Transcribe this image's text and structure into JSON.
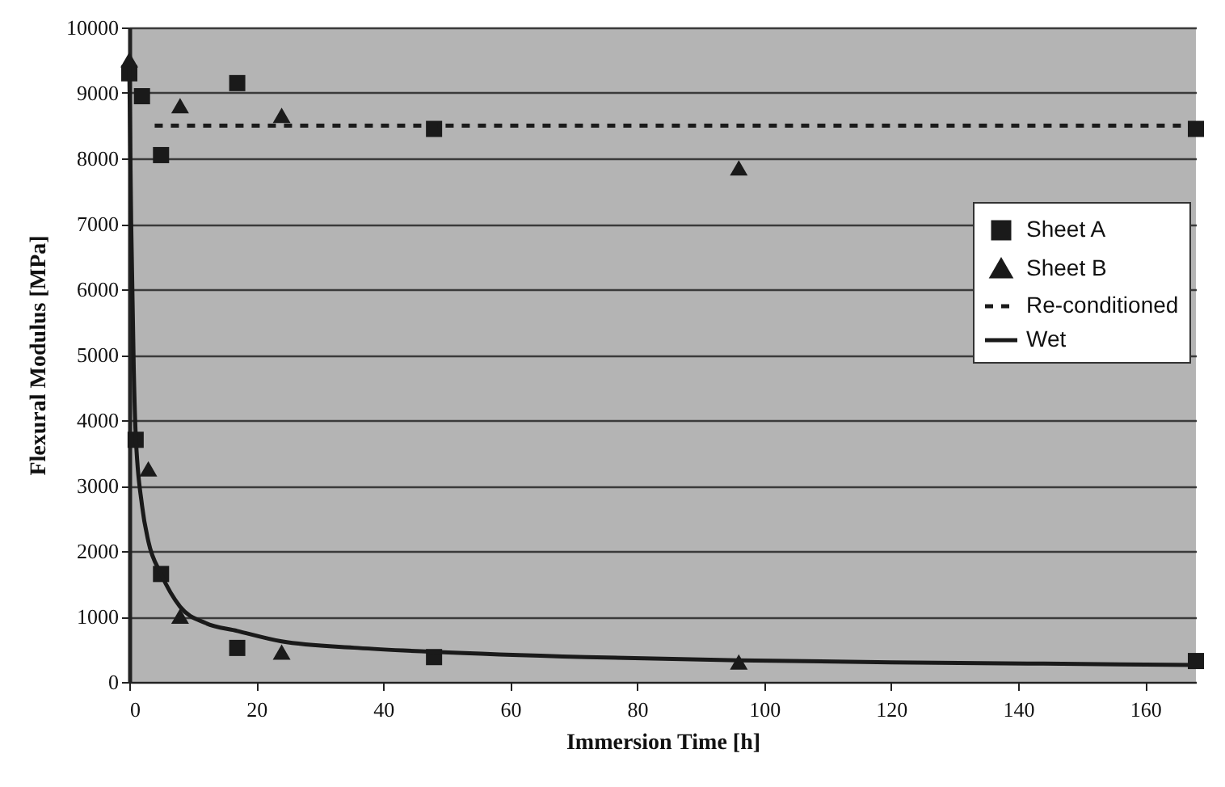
{
  "chart_data": {
    "type": "scatter",
    "xlabel": "Immersion Time [h]",
    "ylabel": "Flexural Modulus [MPa]",
    "xlim": [
      0,
      168
    ],
    "xticks": [
      0,
      20,
      40,
      60,
      80,
      100,
      120,
      140,
      160
    ],
    "ylim": [
      0,
      10000
    ],
    "yticks": [
      0,
      1000,
      2000,
      3000,
      4000,
      5000,
      6000,
      7000,
      8000,
      9000,
      10000
    ],
    "grid": "y",
    "legend": "right",
    "series": [
      {
        "name": "Sheet A",
        "marker": "square",
        "color": "#1a1a1a",
        "x": [
          0,
          2,
          5,
          17,
          48,
          168,
          1,
          5,
          17,
          48,
          168
        ],
        "values": [
          9300,
          8950,
          8050,
          9150,
          8450,
          8450,
          3700,
          1650,
          520,
          380,
          320
        ]
      },
      {
        "name": "Sheet B",
        "marker": "triangle",
        "color": "#1a1a1a",
        "x": [
          0,
          8,
          24,
          96,
          3,
          8,
          24,
          96
        ],
        "values": [
          9500,
          8800,
          8650,
          7850,
          3250,
          1000,
          450,
          300
        ]
      },
      {
        "name": "Re-conditioned",
        "type": "line",
        "line_style": "dashed",
        "color": "#1a1a1a",
        "x": [
          4,
          168
        ],
        "values": [
          8500,
          8500
        ]
      },
      {
        "name": "Wet",
        "type": "line",
        "line_style": "solid",
        "color": "#1a1a1a",
        "x": [
          0,
          0.3,
          0.7,
          1,
          2,
          3,
          5,
          8,
          12,
          17,
          24,
          36,
          48,
          72,
          96,
          120,
          144,
          168
        ],
        "values": [
          9400,
          7000,
          4800,
          3800,
          2700,
          2150,
          1650,
          1150,
          900,
          780,
          620,
          520,
          460,
          380,
          330,
          300,
          280,
          260
        ]
      }
    ]
  }
}
